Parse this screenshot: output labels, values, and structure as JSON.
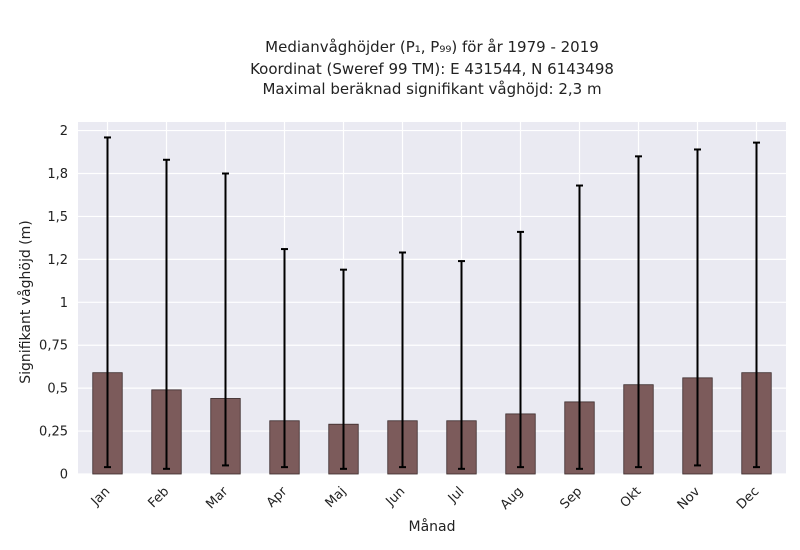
{
  "chart_data": {
    "type": "bar",
    "title_lines": [
      "Medianvåghöjder (P₁, P₉₉) för år 1979 - 2019",
      "Koordinat (Sweref 99 TM): E 431544, N 6143498",
      "Maximal beräknad signifikant våghöjd: 2,3 m"
    ],
    "xlabel": "Månad",
    "ylabel": "Signifikant våghöjd (m)",
    "categories": [
      "Jan",
      "Feb",
      "Mar",
      "Apr",
      "Maj",
      "Jun",
      "Jul",
      "Aug",
      "Sep",
      "Okt",
      "Nov",
      "Dec"
    ],
    "series": [
      {
        "values": [
          0.59,
          0.49,
          0.44,
          0.31,
          0.29,
          0.31,
          0.31,
          0.35,
          0.42,
          0.52,
          0.56,
          0.59
        ],
        "p1": [
          0.04,
          0.03,
          0.05,
          0.04,
          0.03,
          0.04,
          0.03,
          0.04,
          0.03,
          0.04,
          0.05,
          0.04
        ],
        "p99": [
          1.96,
          1.83,
          1.75,
          1.31,
          1.19,
          1.29,
          1.24,
          1.41,
          1.68,
          1.85,
          1.89,
          1.93
        ]
      }
    ],
    "yticks": [
      0,
      0.25,
      0.5,
      0.75,
      1,
      1.25,
      1.5,
      1.75,
      2
    ],
    "ytick_labels": [
      "0",
      "0,25",
      "0,5",
      "0,75",
      "1",
      "1,2",
      "1,5",
      "1,8",
      "2"
    ],
    "ylim": [
      0,
      2.05
    ],
    "grid": true,
    "colors": {
      "bar": "#7c5b5b",
      "bar_edge": "#3a2a2a",
      "plot_background": "#eaeaf2",
      "grid": "#ffffff",
      "errorbar": "#000000"
    }
  }
}
